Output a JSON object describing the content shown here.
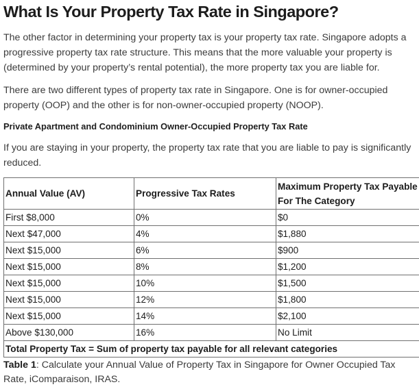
{
  "heading": "What Is Your Property Tax Rate in Singapore?",
  "paragraphs": [
    "The other factor in determining your property tax is your property tax rate. Singapore adopts a progressive property tax rate structure. This means that the more valuable your property is (determined by your property’s rental potential), the more property tax you are liable for.",
    "There are two different types of property tax rate in Singapore. One is for owner-occupied property (OOP) and the other is for non-owner-occupied property (NOOP)."
  ],
  "subheading": "Private Apartment and Condominium Owner-Occupied Property Tax Rate",
  "intro": "If you are staying in your property, the property tax rate that you are liable to pay is significantly reduced.",
  "table": {
    "headers": [
      "Annual Value (AV)",
      "Progressive Tax Rates",
      "Maximum Property Tax Payable For The Category"
    ],
    "rows": [
      [
        "First $8,000",
        "0%",
        "$0"
      ],
      [
        "Next $47,000",
        "4%",
        "$1,880"
      ],
      [
        "Next $15,000",
        "6%",
        "$900"
      ],
      [
        "Next $15,000",
        "8%",
        "$1,200"
      ],
      [
        "Next $15,000",
        "10%",
        "$1,500"
      ],
      [
        "Next $15,000",
        "12%",
        "$1,800"
      ],
      [
        "Next $15,000",
        "14%",
        "$2,100"
      ],
      [
        "Above $130,000",
        "16%",
        "No Limit"
      ]
    ],
    "total": "Total Property Tax = Sum of property tax payable for all relevant categories"
  },
  "caption": {
    "label": "Table 1",
    "text": ": Calculate your Annual Value of Property Tax in Singapore for Owner Occupied Tax Rate, iComparaison, IRAS."
  }
}
